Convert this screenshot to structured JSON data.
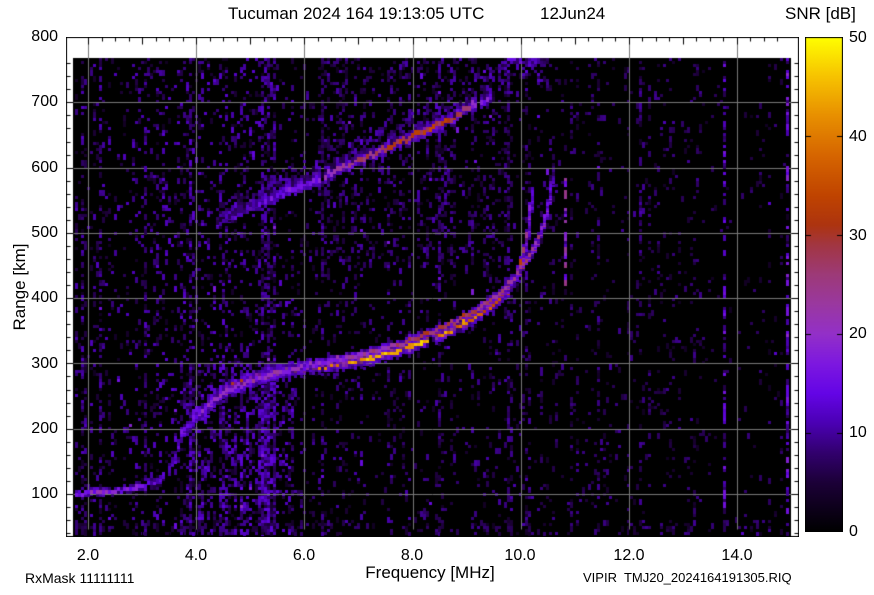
{
  "header": {
    "title_main": "Tucuman 2024 164 19:13:05 UTC",
    "title_date": "12Jun24"
  },
  "footer": {
    "rx_mask": "RxMask 11111111",
    "file_id": "VIPIR  TMJ20_2024164191305.RIQ"
  },
  "axes": {
    "x_label": "Frequency [MHz]",
    "y_label": "Range [km]",
    "x_tick_labels": [
      "2.0",
      "4.0",
      "6.0",
      "8.0",
      "10.0",
      "12.0",
      "14.0"
    ],
    "y_tick_labels": [
      "800",
      "700",
      "600",
      "500",
      "400",
      "300",
      "200",
      "100"
    ]
  },
  "colorbar": {
    "title": "SNR [dB]",
    "tick_labels": [
      "0",
      "10",
      "20",
      "30",
      "40",
      "50"
    ],
    "tick_values": [
      0,
      10,
      20,
      30,
      40,
      50
    ],
    "min": 0,
    "max": 50,
    "stops": [
      [
        0,
        "#000000"
      ],
      [
        5,
        "#1c0038"
      ],
      [
        8,
        "#32006e"
      ],
      [
        11,
        "#4b00b4"
      ],
      [
        14,
        "#6405e6"
      ],
      [
        17,
        "#7d18e0"
      ],
      [
        20,
        "#9330c8"
      ],
      [
        23,
        "#9a38a0"
      ],
      [
        26,
        "#9d3a78"
      ],
      [
        29,
        "#a23642"
      ],
      [
        31,
        "#ad3410"
      ],
      [
        34,
        "#c04400"
      ],
      [
        38,
        "#d66500"
      ],
      [
        42,
        "#e88f00"
      ],
      [
        46,
        "#f7c300"
      ],
      [
        50,
        "#ffff00"
      ]
    ]
  },
  "chart_data": {
    "type": "heatmap",
    "title": "Tucuman 2024 164 19:13:05 UTC 12Jun24",
    "xlabel": "Frequency [MHz]",
    "ylabel": "Range [km]",
    "zlabel": "SNR [dB]",
    "xlim": [
      1.72,
      15.0
    ],
    "ylim": [
      34,
      768
    ],
    "zlim": [
      0,
      50
    ],
    "x_major_ticks": [
      2,
      4,
      6,
      8,
      10,
      12,
      14
    ],
    "x_minor_step": 0.25,
    "y_major_ticks": [
      100,
      200,
      300,
      400,
      500,
      600,
      700,
      800
    ],
    "y_minor_step": 20,
    "grid": true,
    "grid_color": "#787878",
    "background": "#000000",
    "series": [
      {
        "name": "F-layer trace O-mode (1st hop)",
        "role": "main",
        "points_freq_km_snr": [
          [
            1.75,
            97,
            14
          ],
          [
            2.0,
            99,
            18
          ],
          [
            2.3,
            101,
            19
          ],
          [
            2.6,
            103,
            17
          ],
          [
            2.9,
            108,
            15
          ],
          [
            3.2,
            116,
            13
          ],
          [
            3.45,
            128,
            12
          ],
          [
            3.6,
            150,
            8
          ],
          [
            3.72,
            185,
            12
          ],
          [
            3.85,
            205,
            15
          ],
          [
            4.0,
            218,
            18
          ],
          [
            4.15,
            228,
            22
          ],
          [
            4.3,
            240,
            26
          ],
          [
            4.5,
            254,
            30
          ],
          [
            4.7,
            263,
            32
          ],
          [
            4.95,
            271,
            34
          ],
          [
            5.2,
            277,
            36
          ],
          [
            5.5,
            284,
            42
          ],
          [
            5.8,
            289,
            44
          ],
          [
            6.1,
            292,
            40
          ],
          [
            6.4,
            295,
            38
          ],
          [
            6.7,
            299,
            40
          ],
          [
            7.0,
            303,
            42
          ],
          [
            7.3,
            308,
            44
          ],
          [
            7.6,
            315,
            45
          ],
          [
            7.9,
            322,
            44
          ],
          [
            8.2,
            331,
            44
          ],
          [
            8.5,
            342,
            42
          ],
          [
            8.8,
            353,
            40
          ],
          [
            9.1,
            366,
            38
          ],
          [
            9.35,
            380,
            36
          ],
          [
            9.6,
            396,
            34
          ],
          [
            9.8,
            415,
            32
          ],
          [
            9.95,
            438,
            30
          ],
          [
            10.05,
            462,
            30
          ],
          [
            10.12,
            488,
            28
          ],
          [
            10.17,
            515,
            22
          ],
          [
            10.2,
            545,
            16
          ],
          [
            10.22,
            565,
            12
          ]
        ]
      },
      {
        "name": "F-layer trace X-mode (1st hop)",
        "role": "secondary",
        "points_freq_km_snr": [
          [
            3.75,
            192,
            14
          ],
          [
            3.95,
            212,
            16
          ],
          [
            4.15,
            230,
            18
          ],
          [
            4.35,
            243,
            20
          ],
          [
            4.6,
            257,
            22
          ],
          [
            4.9,
            268,
            22
          ],
          [
            5.2,
            276,
            20
          ],
          [
            5.5,
            283,
            20
          ],
          [
            5.9,
            291,
            18
          ],
          [
            6.3,
            298,
            18
          ],
          [
            6.7,
            305,
            20
          ],
          [
            7.1,
            312,
            22
          ],
          [
            7.5,
            321,
            24
          ],
          [
            7.9,
            331,
            26
          ],
          [
            8.3,
            343,
            28
          ],
          [
            8.7,
            357,
            28
          ],
          [
            9.0,
            370,
            28
          ],
          [
            9.3,
            385,
            26
          ],
          [
            9.6,
            403,
            26
          ],
          [
            9.85,
            424,
            26
          ],
          [
            10.05,
            448,
            26
          ],
          [
            10.25,
            474,
            24
          ],
          [
            10.4,
            502,
            22
          ],
          [
            10.5,
            532,
            18
          ],
          [
            10.57,
            568,
            12
          ],
          [
            10.6,
            585,
            8
          ]
        ]
      },
      {
        "name": "2nd-hop / spread-F trace",
        "role": "diffuse",
        "spread_km": 45,
        "points_freq_km_snr": [
          [
            4.4,
            514,
            7
          ],
          [
            4.7,
            527,
            9
          ],
          [
            5.0,
            539,
            11
          ],
          [
            5.35,
            551,
            13
          ],
          [
            5.7,
            562,
            15
          ],
          [
            6.05,
            574,
            17
          ],
          [
            6.4,
            586,
            19
          ],
          [
            6.75,
            599,
            22
          ],
          [
            7.1,
            612,
            26
          ],
          [
            7.45,
            625,
            29
          ],
          [
            7.8,
            638,
            31
          ],
          [
            8.1,
            649,
            32
          ],
          [
            8.4,
            660,
            31
          ],
          [
            8.7,
            673,
            29
          ],
          [
            9.0,
            688,
            25
          ],
          [
            9.25,
            699,
            20
          ],
          [
            9.45,
            707,
            14
          ]
        ]
      },
      {
        "name": "spread-F patch",
        "role": "patch",
        "points_freq_km_snr": [
          [
            9.6,
            738,
            10
          ],
          [
            9.8,
            750,
            13
          ],
          [
            10.0,
            757,
            14
          ],
          [
            10.2,
            756,
            13
          ],
          [
            10.4,
            748,
            11
          ],
          [
            10.55,
            740,
            8
          ]
        ]
      }
    ],
    "rfi_stripes": [
      {
        "freq": 3.05,
        "km": [
          34,
          768
        ],
        "snr": 8,
        "density": 0.35
      },
      {
        "freq": 10.85,
        "km": [
          420,
          580
        ],
        "snr": 18,
        "density": 0.5
      },
      {
        "freq": 12.2,
        "km": [
          450,
          768
        ],
        "snr": 8,
        "density": 0.3
      },
      {
        "freq": 13.78,
        "km": [
          34,
          768
        ],
        "snr": 12,
        "density": 0.45
      },
      {
        "freq": 14.93,
        "km": [
          34,
          768
        ],
        "snr": 14,
        "density": 0.5
      }
    ],
    "noise_bands": [
      {
        "f": [
          1.72,
          3.3
        ],
        "km": [
          34,
          768
        ],
        "density": 0.1,
        "snr": [
          3,
          12
        ]
      },
      {
        "f": [
          3.3,
          5.8
        ],
        "km": [
          34,
          768
        ],
        "density": 0.14,
        "snr": [
          3,
          13
        ]
      },
      {
        "f": [
          3.9,
          5.8
        ],
        "km": [
          34,
          300
        ],
        "density": 0.22,
        "snr": [
          4,
          14
        ]
      },
      {
        "f": [
          5.8,
          10.4
        ],
        "km": [
          34,
          768
        ],
        "density": 0.085,
        "snr": [
          3,
          11
        ]
      },
      {
        "f": [
          6.3,
          9.8
        ],
        "km": [
          450,
          768
        ],
        "density": 0.13,
        "snr": [
          3,
          11
        ]
      },
      {
        "f": [
          10.4,
          13.4
        ],
        "km": [
          34,
          768
        ],
        "density": 0.065,
        "snr": [
          3,
          10
        ]
      },
      {
        "f": [
          13.4,
          15.0
        ],
        "km": [
          34,
          768
        ],
        "density": 0.03,
        "snr": [
          3,
          9
        ]
      },
      {
        "f": [
          1.72,
          15.0
        ],
        "km": [
          34,
          60
        ],
        "density": 0.12,
        "snr": [
          3,
          10
        ]
      }
    ]
  }
}
